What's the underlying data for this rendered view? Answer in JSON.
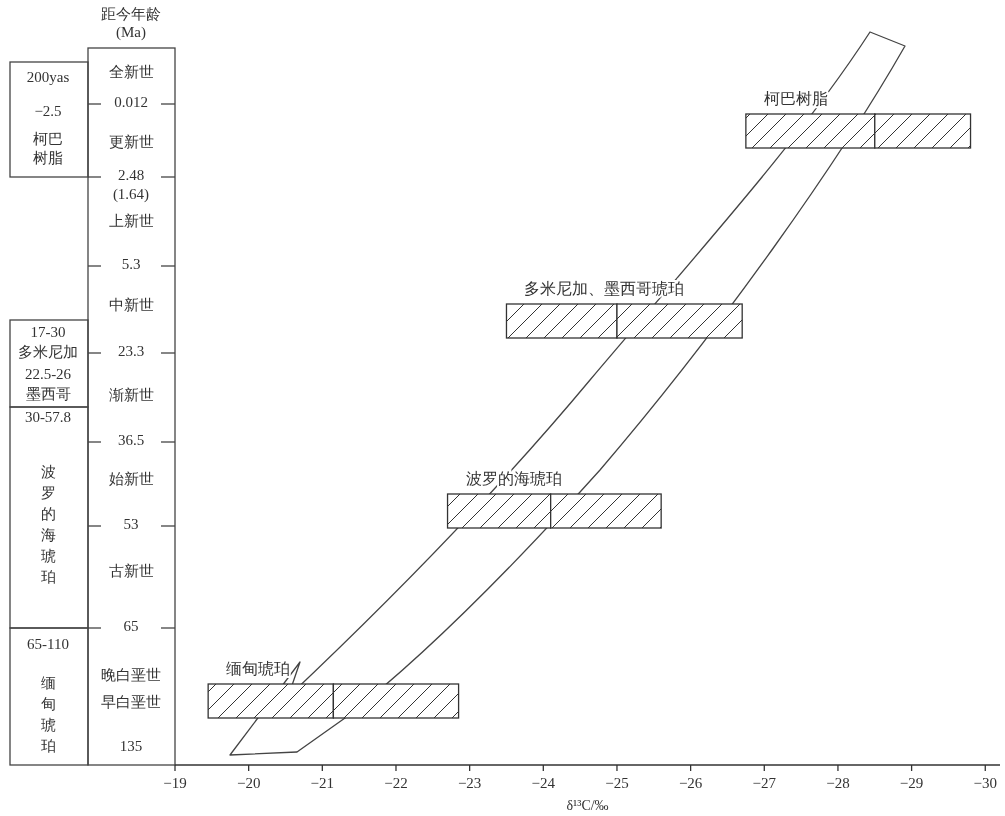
{
  "chart_data": {
    "type": "bar",
    "orientation": "horizontal",
    "categories": [
      "柯巴树脂",
      "多米尼加、墨西哥琥珀",
      "波罗的海琥珀",
      "缅甸琥珀"
    ],
    "series": [
      {
        "color": "#333333",
        "base": [
          -26.75,
          -23.5,
          -22.7,
          -19.45
        ],
        "values": [
          -1.75,
          -1.5,
          -1.4,
          -1.7
        ]
      },
      {
        "color": "#333333",
        "base": [
          -28.5,
          -25.0,
          -24.1,
          -21.15
        ],
        "values": [
          -1.3,
          -1.7,
          -1.5,
          -1.7
        ]
      }
    ],
    "xlim": [
      -19,
      -30.2
    ],
    "xticks": [
      -19,
      -20,
      -21,
      -22,
      -23,
      -24,
      -25,
      -26,
      -27,
      -28,
      -29,
      -30
    ],
    "xlabel": "δ¹³C/‰",
    "annotations": [
      "距今年龄",
      "(Ma)",
      "全新世",
      "0.012",
      "更新世",
      "2.48",
      "(1.64)",
      "上新世",
      "5.3",
      "中新世",
      "23.3",
      "渐新世",
      "36.5",
      "始新世",
      "53",
      "古新世",
      "65",
      "晚白垩世",
      "早白垩世",
      "135",
      "200yas",
      "−2.5",
      "柯巴树脂",
      "17-30",
      "多米尼加",
      "22.5-26",
      "墨西哥",
      "30-57.8",
      "波罗的海琥珀",
      "65-110",
      "缅甸琥珀"
    ]
  }
}
